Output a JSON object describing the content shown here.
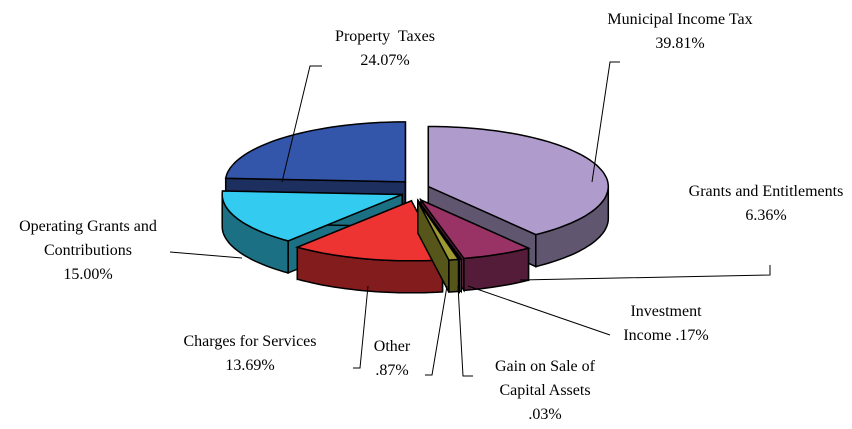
{
  "chart_data": {
    "type": "pie3d",
    "categories": [
      "Municipal Income Tax",
      "Grants and Entitlements",
      "Investment Income",
      "Gain on Sale of Capital Assets",
      "Other",
      "Charges for Services",
      "Operating Grants and Contributions",
      "Property  Taxes"
    ],
    "values": [
      39.81,
      6.36,
      0.17,
      0.03,
      0.87,
      13.69,
      15.0,
      24.07
    ],
    "value_labels": [
      "39.81%",
      "6.36%",
      ".17%",
      ".03%",
      ".87%",
      "13.69%",
      "15.00%",
      "24.07%"
    ],
    "colors": [
      "#b09ccc",
      "#993366",
      "#e0e0e0",
      "#d8d840",
      "#9c9a30",
      "#ee3333",
      "#33ccf0",
      "#3355aa"
    ]
  }
}
